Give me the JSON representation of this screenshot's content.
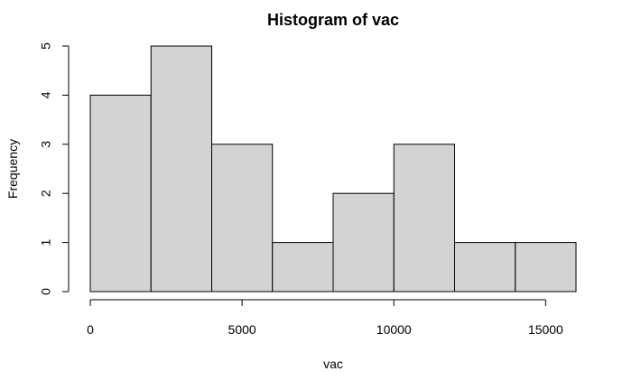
{
  "chart_data": {
    "type": "bar",
    "title": "Histogram of vac",
    "xlabel": "vac",
    "ylabel": "Frequency",
    "bin_edges": [
      0,
      2000,
      4000,
      6000,
      8000,
      10000,
      12000,
      14000,
      16000
    ],
    "values": [
      4,
      5,
      3,
      1,
      2,
      3,
      1,
      1
    ],
    "xlim": [
      0,
      16000
    ],
    "ylim": [
      0,
      5
    ],
    "x_ticks": [
      0,
      5000,
      10000,
      15000
    ],
    "x_tick_labels": [
      "0",
      "5000",
      "10000",
      "15000"
    ],
    "y_ticks": [
      0,
      1,
      2,
      3,
      4,
      5
    ],
    "y_tick_labels": [
      "0",
      "1",
      "2",
      "3",
      "4",
      "5"
    ],
    "bar_color": "#d3d3d3",
    "grid": false,
    "legend": "none"
  }
}
